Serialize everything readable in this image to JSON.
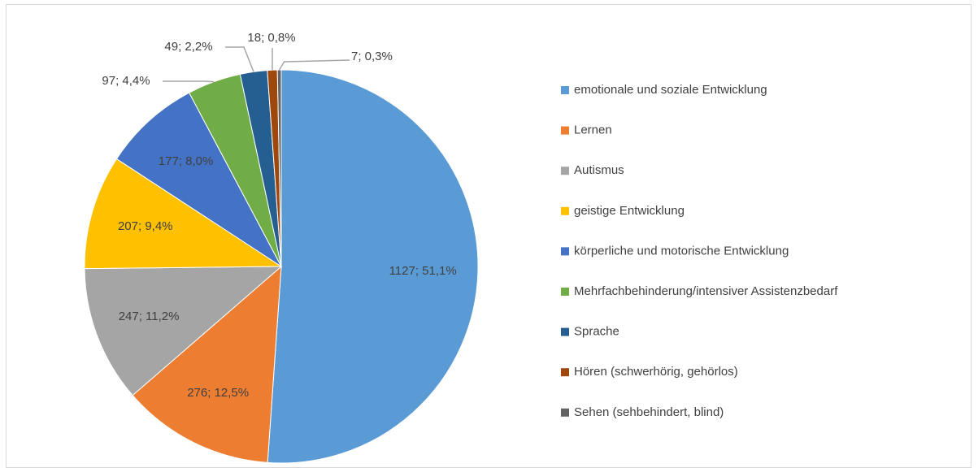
{
  "chart_data": {
    "type": "pie",
    "categories": [
      "emotionale und soziale Entwicklung",
      "Lernen",
      "Autismus",
      "geistige Entwicklung",
      "körperliche und motorische Entwicklung",
      "Mehrfachbehinderung/intensiver Assistenzbedarf",
      "Sprache",
      "Hören (schwerhörig, gehörlos)",
      "Sehen (sehbehindert, blind)"
    ],
    "values": [
      1127,
      276,
      247,
      207,
      177,
      97,
      49,
      18,
      7
    ],
    "value_labels": [
      "1127; 51,1%",
      "276; 12,5%",
      "247; 11,2%",
      "207; 9,4%",
      "177; 8,0%",
      "97; 4,4%",
      "49; 2,2%",
      "18; 0,8%",
      "7; 0,3%"
    ],
    "colors": [
      "#5b9bd5",
      "#ed7d31",
      "#a5a5a5",
      "#ffc000",
      "#4472c4",
      "#70ad47",
      "#255e91",
      "#9e480e",
      "#636363"
    ],
    "legend": "right"
  }
}
